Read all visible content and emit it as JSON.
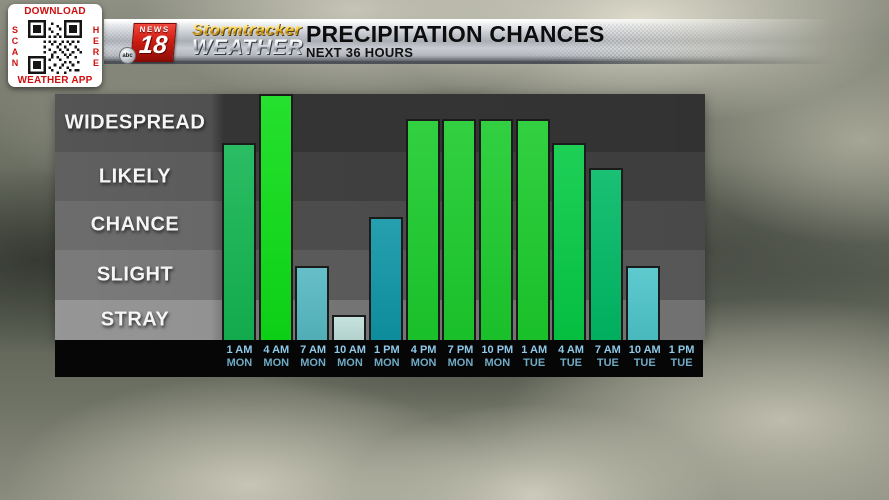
{
  "qr_panel": {
    "top_label": "DOWNLOAD",
    "left_label": "SCAN",
    "right_label": "HERE",
    "bottom_label": "WEATHER APP",
    "accent_color": "#ce100f"
  },
  "logo": {
    "news": "NEWS",
    "channel": "18",
    "network": "abc",
    "line1": "Stormtracker",
    "line2": "WEATHER"
  },
  "header": {
    "title": "PRECIPITATION CHANCES",
    "subtitle": "NEXT 36 HOURS"
  },
  "chart_data": {
    "type": "bar",
    "title": "PRECIPITATION CHANCES",
    "subtitle": "NEXT 36 HOURS",
    "ylim": [
      0,
      5
    ],
    "grid": false,
    "y_axis": {
      "levels_top_to_bottom": [
        "WIDESPREAD",
        "LIKELY",
        "CHANCE",
        "SLIGHT",
        "STRAY"
      ],
      "band_colors_top_to_bottom": [
        "#3c3c3c",
        "#494949",
        "#575757",
        "#676767",
        "#868686"
      ]
    },
    "x_ticks": [
      {
        "time": "1 AM",
        "day": "MON"
      },
      {
        "time": "4 AM",
        "day": "MON"
      },
      {
        "time": "7 AM",
        "day": "MON"
      },
      {
        "time": "10 AM",
        "day": "MON"
      },
      {
        "time": "1 PM",
        "day": "MON"
      },
      {
        "time": "4 PM",
        "day": "MON"
      },
      {
        "time": "7 PM",
        "day": "MON"
      },
      {
        "time": "10 PM",
        "day": "MON"
      },
      {
        "time": "1 AM",
        "day": "TUE"
      },
      {
        "time": "4 AM",
        "day": "TUE"
      },
      {
        "time": "7 AM",
        "day": "TUE"
      },
      {
        "time": "10 AM",
        "day": "TUE"
      },
      {
        "time": "1 PM",
        "day": "TUE"
      }
    ],
    "values": [
      4.0,
      5.0,
      1.5,
      0.5,
      2.5,
      4.5,
      4.5,
      4.5,
      4.5,
      4.0,
      3.5,
      1.5,
      0
    ],
    "value_labels": [
      "WIDESPREAD",
      "WIDESPREAD (max)",
      "SLIGHT",
      "STRAY",
      "CHANCE",
      "WIDESPREAD",
      "WIDESPREAD",
      "WIDESPREAD",
      "WIDESPREAD",
      "WIDESPREAD",
      "LIKELY",
      "SLIGHT",
      "NONE"
    ],
    "bar_colors": [
      "#13b551",
      "#0ddd17",
      "#55b8c2",
      "#bfdfda",
      "#0e95a6",
      "#1bcb2c",
      "#1bcb2c",
      "#1bcb2c",
      "#1bcb2c",
      "#05ca44",
      "#00b964",
      "#4cc4c9",
      "none"
    ],
    "tick_time_color": "#8fc9e9",
    "tick_day_color": "#6fa9c4"
  }
}
